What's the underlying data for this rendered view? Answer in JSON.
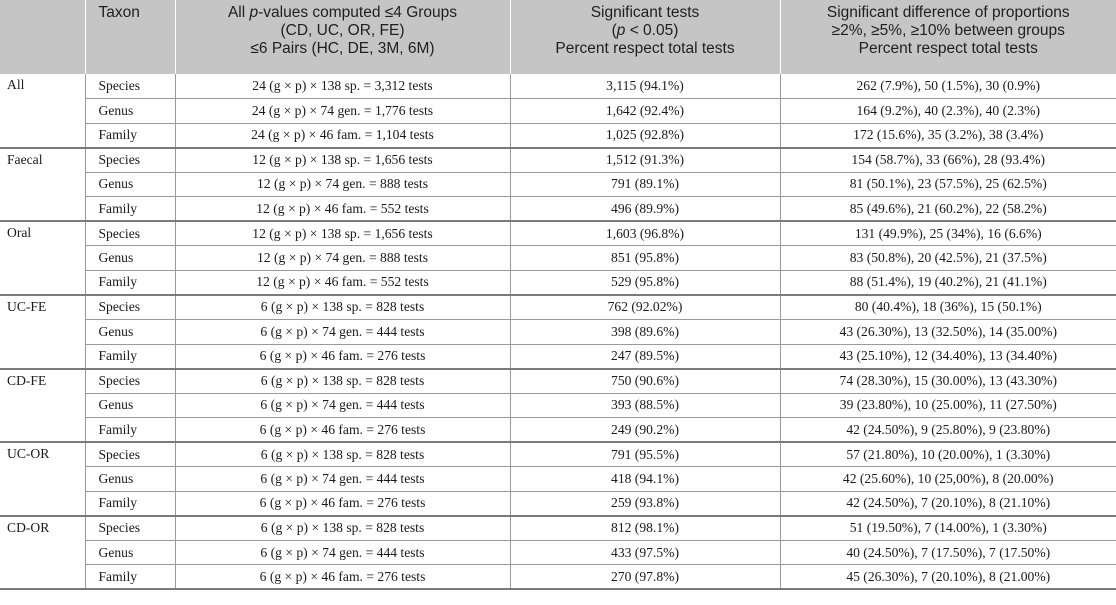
{
  "headers": {
    "col0": "",
    "col1": "Taxon",
    "col2": {
      "line1_pre": "All ",
      "line1_italic": "p",
      "line1_post": "-values computed ≤4 Groups",
      "line2": "(CD, UC, OR, FE)",
      "line3": "≤6 Pairs (HC, DE, 3M, 6M)"
    },
    "col3": {
      "line1": "Significant tests",
      "line2_pre": "(",
      "line2_italic": "p",
      "line2_post": " < 0.05)",
      "line3": "Percent respect total tests"
    },
    "col4": {
      "line1": "Significant difference of proportions",
      "line2": "≥2%, ≥5%, ≥10% between groups",
      "line3": "Percent respect total tests"
    }
  },
  "groups": [
    {
      "name": "All",
      "rows": [
        {
          "taxon": "Species",
          "computed": "24 (g × p) × 138 sp. = 3,312 tests",
          "sig": "3,115 (94.1%)",
          "diff": "262 (7.9%), 50 (1.5%), 30 (0.9%)"
        },
        {
          "taxon": "Genus",
          "computed": "24 (g × p) × 74 gen. = 1,776 tests",
          "sig": "1,642 (92.4%)",
          "diff": "164 (9.2%), 40 (2.3%), 40 (2.3%)"
        },
        {
          "taxon": "Family",
          "computed": "24 (g × p) × 46 fam. = 1,104 tests",
          "sig": "1,025 (92.8%)",
          "diff": "172 (15.6%), 35 (3.2%), 38 (3.4%)"
        }
      ]
    },
    {
      "name": "Faecal",
      "rows": [
        {
          "taxon": "Species",
          "computed": "12 (g × p) × 138 sp. = 1,656 tests",
          "sig": "1,512 (91.3%)",
          "diff": "154 (58.7%), 33 (66%), 28 (93.4%)"
        },
        {
          "taxon": "Genus",
          "computed": "12 (g × p) × 74 gen. = 888 tests",
          "sig": "791 (89.1%)",
          "diff": "81 (50.1%), 23 (57.5%), 25 (62.5%)"
        },
        {
          "taxon": "Family",
          "computed": "12 (g × p) × 46 fam. = 552 tests",
          "sig": "496 (89.9%)",
          "diff": "85 (49.6%), 21 (60.2%), 22 (58.2%)"
        }
      ]
    },
    {
      "name": "Oral",
      "rows": [
        {
          "taxon": "Species",
          "computed": "12 (g × p) × 138 sp. = 1,656 tests",
          "sig": "1,603 (96.8%)",
          "diff": "131 (49.9%), 25 (34%), 16 (6.6%)"
        },
        {
          "taxon": "Genus",
          "computed": "12 (g × p) × 74 gen. = 888 tests",
          "sig": "851 (95.8%)",
          "diff": "83 (50.8%), 20 (42.5%), 21 (37.5%)"
        },
        {
          "taxon": "Family",
          "computed": "12 (g × p) × 46 fam. = 552 tests",
          "sig": "529 (95.8%)",
          "diff": "88 (51.4%), 19 (40.2%), 21 (41.1%)"
        }
      ]
    },
    {
      "name": "UC-FE",
      "rows": [
        {
          "taxon": "Species",
          "computed": "6 (g × p) × 138 sp. = 828 tests",
          "sig": "762 (92.02%)",
          "diff": "80 (40.4%), 18 (36%), 15 (50.1%)"
        },
        {
          "taxon": "Genus",
          "computed": "6 (g × p) × 74 gen. = 444 tests",
          "sig": "398 (89.6%)",
          "diff": "43 (26.30%), 13 (32.50%), 14 (35.00%)"
        },
        {
          "taxon": "Family",
          "computed": "6 (g × p) × 46 fam. = 276 tests",
          "sig": "247 (89.5%)",
          "diff": "43 (25.10%), 12 (34.40%), 13 (34.40%)"
        }
      ]
    },
    {
      "name": "CD-FE",
      "rows": [
        {
          "taxon": "Species",
          "computed": "6 (g × p) × 138 sp. = 828 tests",
          "sig": "750 (90.6%)",
          "diff": "74 (28.30%), 15 (30.00%), 13 (43.30%)"
        },
        {
          "taxon": "Genus",
          "computed": "6 (g × p) × 74 gen. = 444 tests",
          "sig": "393 (88.5%)",
          "diff": "39 (23.80%), 10 (25.00%), 11 (27.50%)"
        },
        {
          "taxon": "Family",
          "computed": "6 (g × p) × 46 fam. = 276 tests",
          "sig": "249 (90.2%)",
          "diff": "42 (24.50%), 9 (25.80%), 9 (23.80%)"
        }
      ]
    },
    {
      "name": "UC-OR",
      "rows": [
        {
          "taxon": "Species",
          "computed": "6 (g × p) × 138 sp. = 828 tests",
          "sig": "791 (95.5%)",
          "diff": "57 (21.80%), 10 (20.00%), 1 (3.30%)"
        },
        {
          "taxon": "Genus",
          "computed": "6 (g × p) × 74 gen. = 444 tests",
          "sig": "418 (94.1%)",
          "diff": "42 (25.60%), 10 (25,00%), 8 (20.00%)"
        },
        {
          "taxon": "Family",
          "computed": "6 (g × p) × 46 fam. = 276 tests",
          "sig": "259 (93.8%)",
          "diff": "42 (24.50%), 7 (20.10%), 8 (21.10%)"
        }
      ]
    },
    {
      "name": "CD-OR",
      "rows": [
        {
          "taxon": "Species",
          "computed": "6 (g × p) × 138 sp. = 828 tests",
          "sig": "812 (98.1%)",
          "diff": "51 (19.50%), 7 (14.00%), 1 (3.30%)"
        },
        {
          "taxon": "Genus",
          "computed": "6 (g × p) × 74 gen. = 444 tests",
          "sig": "433 (97.5%)",
          "diff": "40 (24.50%), 7 (17.50%), 7 (17.50%)"
        },
        {
          "taxon": "Family",
          "computed": "6 (g × p) × 46 fam. = 276 tests",
          "sig": "270 (97.8%)",
          "diff": "45 (26.30%), 7 (20.10%), 8 (21.00%)"
        }
      ]
    }
  ]
}
